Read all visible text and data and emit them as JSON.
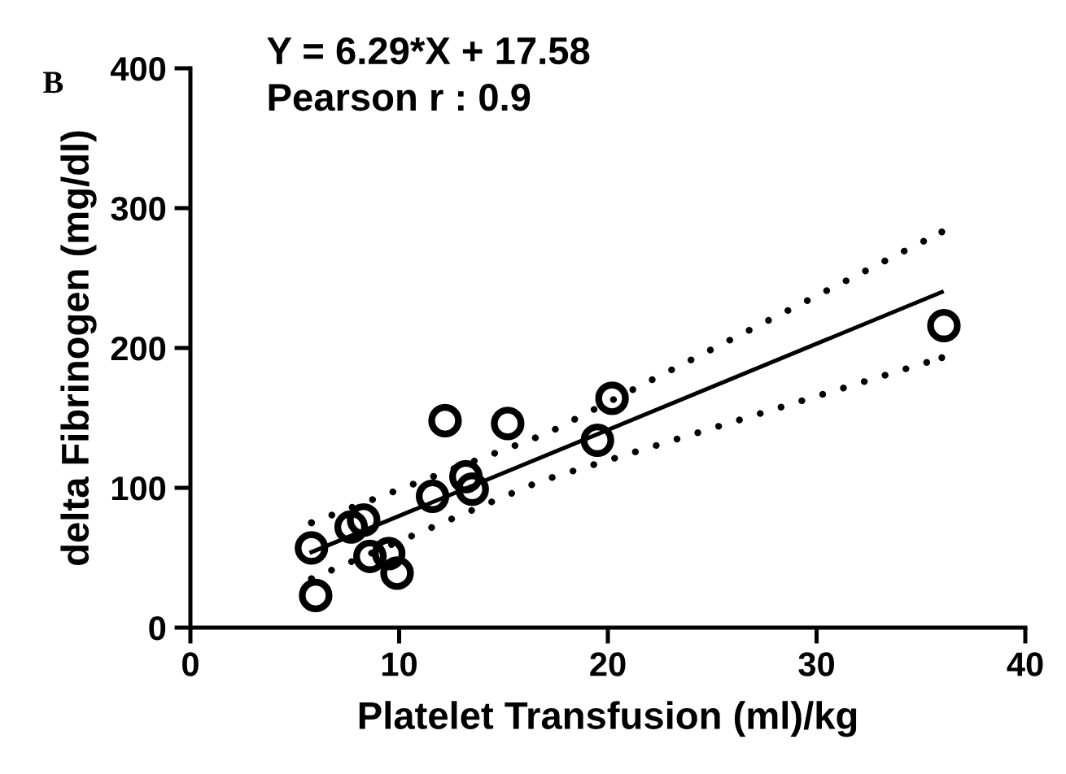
{
  "chart_data": {
    "type": "scatter",
    "xlabel": "Platelet Transfusion (ml)/kg",
    "ylabel": "delta Fibrinogen (mg/dl)",
    "annotations": [
      "B",
      "Y = 6.29*X + 17.58",
      "Pearson r : 0.9"
    ],
    "xlim": [
      0,
      40
    ],
    "xticks": [
      0,
      10,
      20,
      30,
      40
    ],
    "ylim": [
      0,
      400
    ],
    "yticks": [
      0,
      100,
      200,
      300,
      400
    ],
    "grid": false,
    "legend": false,
    "series": [
      {
        "color": "#000000",
        "marker": "circle",
        "x": [
          5.8,
          6.0,
          7.7,
          8.3,
          8.6,
          9.5,
          9.9,
          11.6,
          12.2,
          13.2,
          13.5,
          15.2,
          19.5,
          20.2,
          36.1
        ],
        "values": [
          57,
          23,
          72,
          77,
          51,
          53,
          39,
          94,
          148,
          108,
          99,
          146,
          134,
          164,
          216
        ]
      },
      {
        "type": "line",
        "color": "#000000",
        "line_style": "solid",
        "x": [
          5.8,
          36
        ],
        "values": [
          54,
          240
        ]
      },
      {
        "type": "line",
        "color": "#000000",
        "line_style": "dotted",
        "x": [
          5.8,
          17.1,
          36
        ],
        "values": [
          75,
          139,
          283
        ]
      },
      {
        "type": "line",
        "color": "#000000",
        "line_style": "dotted",
        "x": [
          5.8,
          16.8,
          36
        ],
        "values": [
          35,
          105,
          193
        ]
      }
    ]
  }
}
